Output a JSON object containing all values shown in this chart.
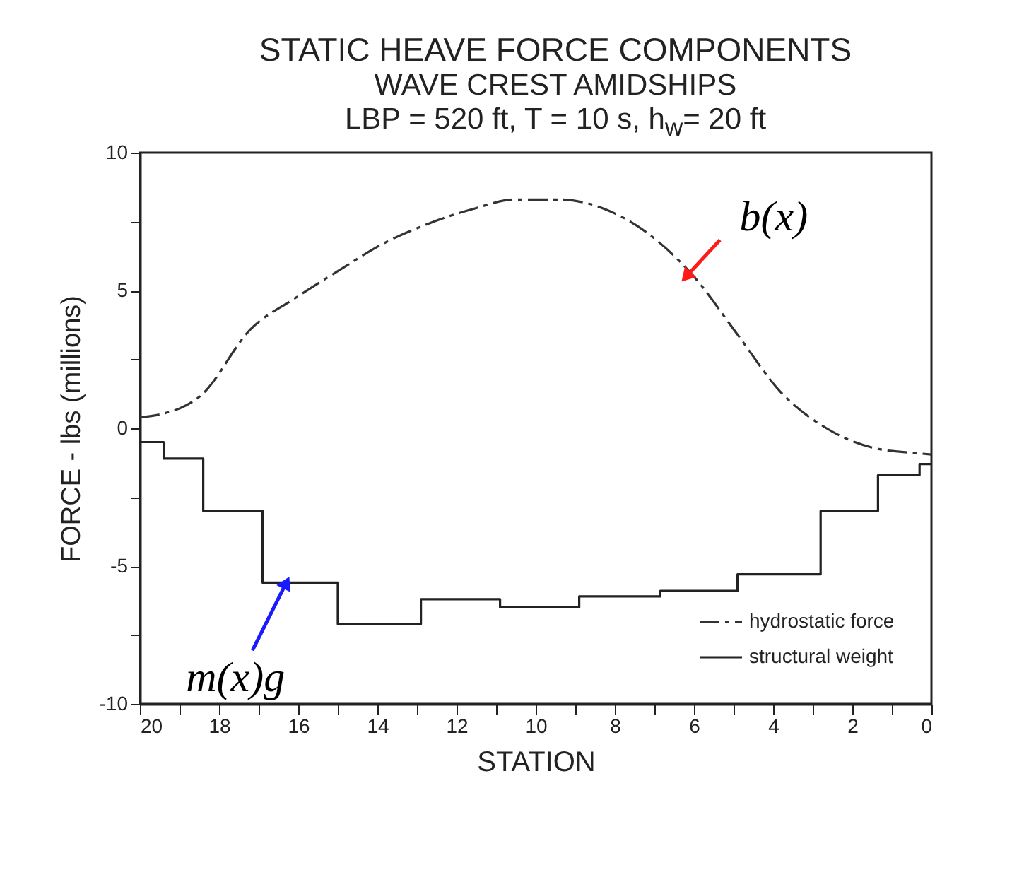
{
  "chart_data": {
    "type": "line",
    "title": "STATIC HEAVE FORCE COMPONENTS",
    "subtitle": "WAVE CREST AMIDSHIPS\nLBP = 520 ft, T = 10 s, h$_{w}$= 20 ft",
    "xlabel": "STATION",
    "ylabel": "FORCE - lbs (millions)",
    "xlim": [
      20,
      0
    ],
    "ylim": [
      -10,
      10
    ],
    "xticks": [
      20,
      {
        "value": 19,
        "label": null
      },
      18,
      {
        "value": 17,
        "label": null
      },
      16,
      {
        "value": 15,
        "label": null
      },
      14,
      {
        "value": 13,
        "label": null
      },
      12,
      {
        "value": 11,
        "label": null
      },
      10,
      {
        "value": 9,
        "label": null
      },
      8,
      {
        "value": 7,
        "label": null
      },
      6,
      {
        "value": 5,
        "label": null
      },
      4,
      {
        "value": 3,
        "label": null
      },
      2,
      {
        "value": 1,
        "label": null
      },
      0
    ],
    "yticks": [
      -10,
      {
        "value": -7.5,
        "label": null
      },
      -5,
      {
        "value": -2.5,
        "label": null
      },
      0,
      {
        "value": 2.5,
        "label": null
      },
      5,
      {
        "value": 7.5,
        "label": null
      },
      10
    ],
    "grid": false,
    "legend": "bottom right",
    "series": [
      {
        "name": "hydrostatic force",
        "color": "#333333",
        "line_style": "dashed",
        "x": [
          20,
          19.5,
          18.45,
          17.2,
          16.1,
          15,
          13.85,
          12.75,
          11.6,
          10.5,
          9.4,
          8.25,
          7.1,
          6,
          4.9,
          3.8,
          2.65,
          1.5,
          0.4,
          0
        ],
        "values": [
          0.4,
          0.5,
          1.2,
          3.6,
          4.7,
          5.7,
          6.7,
          7.4,
          7.95,
          8.3,
          8.3,
          7.95,
          7.0,
          5.5,
          3.4,
          1.3,
          0.0,
          -0.7,
          -0.9,
          -0.95
        ]
      },
      {
        "name": "structural weight",
        "color": "#222222",
        "type": "step",
        "line_style": "solid",
        "x": [
          20,
          19.4,
          18.4,
          16.9,
          15,
          12.9,
          10.9,
          8.9,
          6.85,
          4.9,
          2.8,
          1.35,
          0.3,
          0
        ],
        "values": [
          -0.5,
          -1.1,
          -3.0,
          -5.6,
          -7.1,
          -6.2,
          -6.5,
          -6.1,
          -5.9,
          -5.3,
          -3.0,
          -1.7,
          -1.3,
          -1.3
        ]
      }
    ],
    "annotations": [
      {
        "text": "b(x)",
        "x": 6.2,
        "y": 5.5
      },
      {
        "text": "m(x)g",
        "x": 16.3,
        "y": -5.6
      }
    ]
  }
}
